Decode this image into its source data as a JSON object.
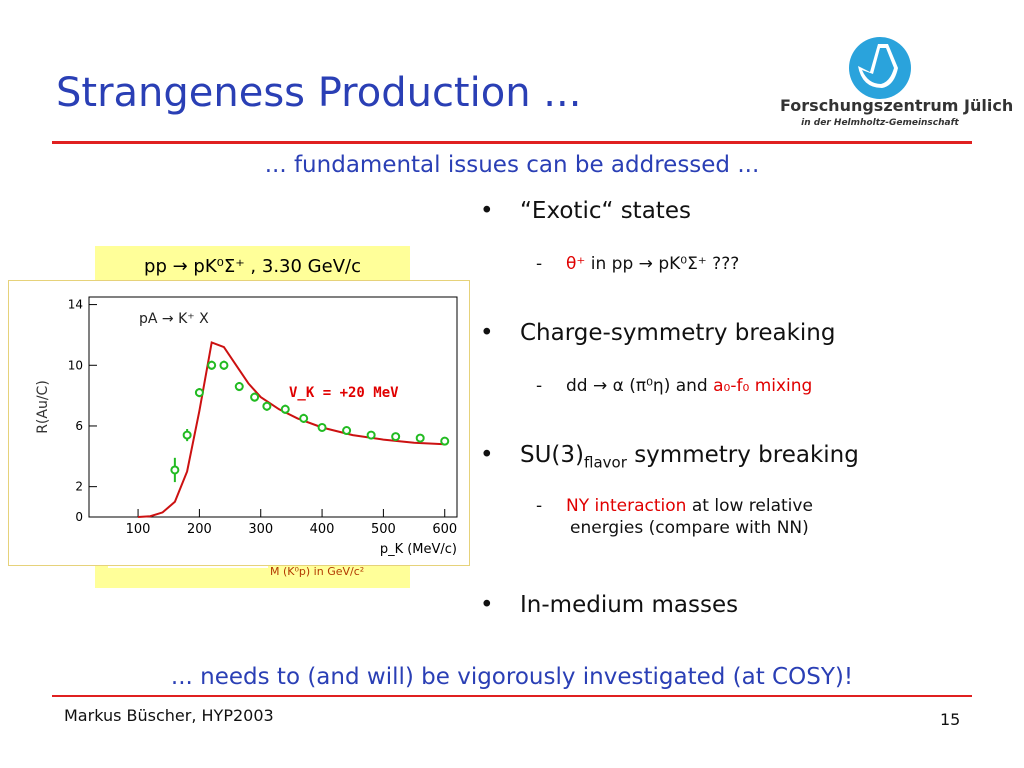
{
  "slide": {
    "title": "Strangeness Production ...",
    "subtitle": "... fundamental issues can be addressed ...",
    "conclusion": "... needs to (and will) be vigorously investigated (at COSY)!",
    "footer": {
      "author": "Markus Büscher, HYP2003",
      "page": "15"
    },
    "logo": {
      "name": "Forschungszentrum Jülich",
      "tagline": "in der Helmholtz-Gemeinschaft"
    },
    "accent_color": "#2a3fb5",
    "line_color": "#e02020"
  },
  "background_panel": {
    "title": "pp → pK⁰Σ⁺ , 3.30 GeV/c",
    "footer_label": "M (K⁰p) in GeV/c²"
  },
  "bullets": [
    {
      "text": "“Exotic“ states",
      "sub": [
        {
          "red": "θ⁺",
          "text": " in pp → pK⁰Σ⁺ ???"
        }
      ]
    },
    {
      "text": "Charge-symmetry breaking",
      "sub": [
        {
          "pre": "dd → α (π⁰η) and ",
          "red": "a₀-f₀ mixing"
        }
      ]
    },
    {
      "text": "SU(3)",
      "text_sub": "flavor",
      "text_post": " symmetry breaking",
      "sub": [
        {
          "red": "NY interaction",
          "text": " at low relative",
          "line2": "energies (compare with NN)"
        }
      ]
    },
    {
      "text": "In-medium masses",
      "sub": []
    }
  ],
  "chart_data": {
    "type": "scatter",
    "title": "pA → K⁺ X",
    "annotation": "V_K = +20 MeV",
    "xlabel": "p_K (MeV/c)",
    "ylabel": "R(Au/C)",
    "xlim": [
      20,
      620
    ],
    "ylim": [
      0,
      14.5
    ],
    "xticks": [
      100,
      200,
      300,
      400,
      500,
      600
    ],
    "yticks": [
      0,
      2,
      6,
      10,
      14
    ],
    "points": {
      "name": "",
      "color": "#22bb22",
      "x": [
        160,
        180,
        200,
        220,
        240,
        265,
        290,
        310,
        340,
        370,
        400,
        440,
        480,
        520,
        560,
        600
      ],
      "y": [
        3.1,
        5.4,
        8.2,
        10.0,
        10.0,
        8.6,
        7.9,
        7.3,
        7.1,
        6.5,
        5.9,
        5.7,
        5.4,
        5.3,
        5.2,
        5.0
      ],
      "yerr": [
        0.8,
        0.4,
        0.3,
        0.3,
        0.3,
        0.3,
        0.3,
        0.3,
        0.3,
        0.3,
        0.2,
        0.2,
        0.2,
        0.2,
        0.2,
        0.2
      ]
    },
    "curve": {
      "name": "",
      "color": "#cc1111",
      "x": [
        100,
        120,
        140,
        160,
        180,
        200,
        220,
        240,
        260,
        280,
        300,
        330,
        360,
        400,
        450,
        500,
        550,
        600
      ],
      "y": [
        0.0,
        0.05,
        0.3,
        1.0,
        3.0,
        7.0,
        11.5,
        11.2,
        10.0,
        8.8,
        7.9,
        7.1,
        6.5,
        5.9,
        5.4,
        5.1,
        4.9,
        4.8
      ]
    }
  }
}
